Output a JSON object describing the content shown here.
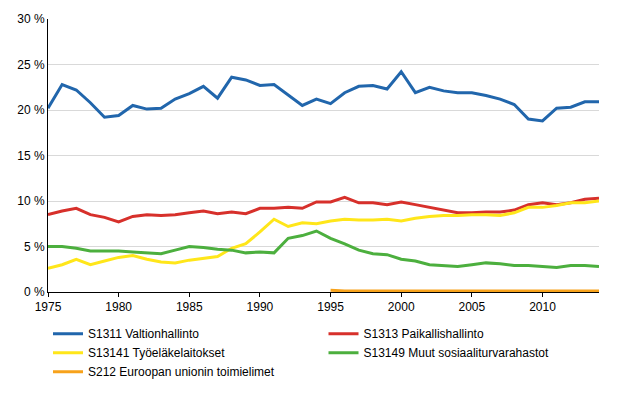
{
  "chart_data": {
    "type": "line",
    "x": [
      1975,
      1976,
      1977,
      1978,
      1979,
      1980,
      1981,
      1982,
      1983,
      1984,
      1985,
      1986,
      1987,
      1988,
      1989,
      1990,
      1991,
      1992,
      1993,
      1994,
      1995,
      1996,
      1997,
      1998,
      1999,
      2000,
      2001,
      2002,
      2003,
      2004,
      2005,
      2006,
      2007,
      2008,
      2009,
      2010,
      2011,
      2012,
      2013,
      2014
    ],
    "series": [
      {
        "name": "S1311 Valtionhallinto",
        "color": "#2166ac",
        "values": [
          20.2,
          22.8,
          22.2,
          20.8,
          19.2,
          19.4,
          20.5,
          20.1,
          20.2,
          21.2,
          21.8,
          22.6,
          21.3,
          23.6,
          23.3,
          22.7,
          22.8,
          21.6,
          20.5,
          21.2,
          20.7,
          21.9,
          22.6,
          22.7,
          22.3,
          24.2,
          21.9,
          22.5,
          22.1,
          21.9,
          21.9,
          21.6,
          21.2,
          20.6,
          19.0,
          18.8,
          20.2,
          20.3,
          20.9,
          20.9
        ]
      },
      {
        "name": "S1313 Paikallishallinto",
        "color": "#d7302b",
        "values": [
          8.5,
          8.9,
          9.2,
          8.5,
          8.2,
          7.7,
          8.3,
          8.5,
          8.4,
          8.5,
          8.7,
          8.9,
          8.6,
          8.8,
          8.6,
          9.2,
          9.2,
          9.3,
          9.2,
          9.9,
          9.9,
          10.4,
          9.8,
          9.8,
          9.6,
          9.9,
          9.6,
          9.3,
          9.0,
          8.7,
          8.7,
          8.8,
          8.8,
          9.0,
          9.6,
          9.8,
          9.6,
          9.8,
          10.2,
          10.3
        ]
      },
      {
        "name": "S13141 Työeläkelaitokset",
        "color": "#ffe61a",
        "values": [
          2.6,
          3.0,
          3.6,
          3.0,
          3.4,
          3.8,
          4.0,
          3.6,
          3.3,
          3.2,
          3.5,
          3.7,
          3.9,
          4.8,
          5.3,
          6.6,
          8.0,
          7.2,
          7.6,
          7.5,
          7.8,
          8.0,
          7.9,
          7.9,
          8.0,
          7.8,
          8.1,
          8.3,
          8.4,
          8.4,
          8.5,
          8.5,
          8.4,
          8.7,
          9.3,
          9.3,
          9.5,
          9.8,
          9.8,
          10.0
        ]
      },
      {
        "name": "S13149 Muut sosiaaliturvarahastot",
        "color": "#4caf3e",
        "values": [
          5.0,
          5.0,
          4.8,
          4.5,
          4.5,
          4.5,
          4.4,
          4.3,
          4.2,
          4.6,
          5.0,
          4.9,
          4.7,
          4.6,
          4.3,
          4.4,
          4.3,
          5.9,
          6.2,
          6.7,
          5.9,
          5.3,
          4.6,
          4.2,
          4.1,
          3.6,
          3.4,
          3.0,
          2.9,
          2.8,
          3.0,
          3.2,
          3.1,
          2.9,
          2.9,
          2.8,
          2.7,
          2.9,
          2.9,
          2.8
        ]
      },
      {
        "name": "S212 Euroopan unionin toimielimet",
        "color": "#f7a21b",
        "values": [
          null,
          null,
          null,
          null,
          null,
          null,
          null,
          null,
          null,
          null,
          null,
          null,
          null,
          null,
          null,
          null,
          null,
          null,
          null,
          null,
          0.2,
          0.1,
          0.1,
          0.1,
          0.1,
          0.1,
          0.1,
          0.1,
          0.1,
          0.1,
          0.1,
          0.1,
          0.1,
          0.1,
          0.1,
          0.1,
          0.1,
          0.1,
          0.1,
          0.1
        ]
      }
    ],
    "xlim": [
      1975,
      2014
    ],
    "xticks": [
      1975,
      1980,
      1985,
      1990,
      1995,
      2000,
      2005,
      2010
    ],
    "ylim": [
      0,
      30
    ],
    "yticks": [
      {
        "value": 0,
        "label": "0 %"
      },
      {
        "value": 5,
        "label": "5 %"
      },
      {
        "value": 10,
        "label": "10 %"
      },
      {
        "value": 15,
        "label": "15 %"
      },
      {
        "value": 20,
        "label": "20 %"
      },
      {
        "value": 25,
        "label": "25 %"
      },
      {
        "value": 30,
        "label": "30 %"
      }
    ],
    "grid": true,
    "legend": "bottom"
  }
}
